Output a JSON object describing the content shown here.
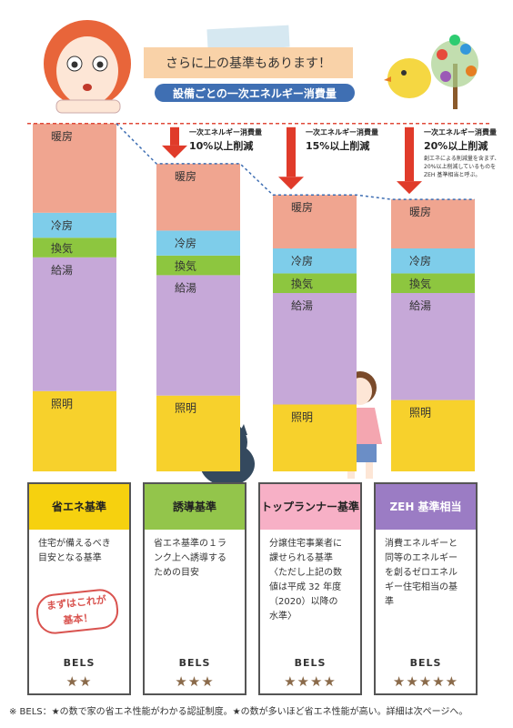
{
  "header": {
    "banner": "さらに上の基準もあります！",
    "subtitle": "設備ごとの一次エネルギー消費量"
  },
  "chart_data": {
    "type": "bar",
    "stacked": true,
    "categories": [
      "省エネ基準",
      "誘導基準",
      "トップランナー基準",
      "ZEH 基準相当"
    ],
    "series": [
      {
        "name": "暖房",
        "color": "#f0a590",
        "values": [
          100,
          75,
          60,
          55
        ]
      },
      {
        "name": "冷房",
        "color": "#7ecdea",
        "values": [
          28,
          28,
          28,
          28
        ]
      },
      {
        "name": "換気",
        "color": "#8dc63f",
        "values": [
          22,
          22,
          22,
          22
        ]
      },
      {
        "name": "給湯",
        "color": "#c6a8d8",
        "values": [
          150,
          135,
          125,
          120
        ]
      },
      {
        "name": "照明",
        "color": "#f7d12c",
        "values": [
          90,
          85,
          75,
          80
        ]
      }
    ],
    "annotations": [
      {
        "small": "一次エネルギー消費量",
        "big": "10%以上削減"
      },
      {
        "small": "一次エネルギー消費量",
        "big": "15%以上削減"
      },
      {
        "small": "一次エネルギー消費量",
        "big": "20%以上削減",
        "note": [
          "創エネによる削減量を含まず、",
          "20%以上削減しているものを",
          "ZEH 基準相当と呼ぶ。"
        ]
      }
    ]
  },
  "cards": [
    {
      "title": "省エネ基準",
      "lines": [
        "住宅が備えるべき",
        "目安となる基準"
      ],
      "stamp": [
        "まずはこれが",
        "基本！"
      ],
      "bels": "BELS",
      "stars": "★★",
      "color": "#f6d10f"
    },
    {
      "title": "誘導基準",
      "lines": [
        "省エネ基準の１ラ",
        "ンク上へ誘導する",
        "ための目安"
      ],
      "bels": "BELS",
      "stars": "★★★",
      "color": "#93c54b"
    },
    {
      "title": "トップランナー基準",
      "lines": [
        "分譲住宅事業者に",
        "課せられる基準",
        "〈ただし上記の数",
        "値は平成 32 年度",
        "（2020）以降の",
        "水準〉"
      ],
      "bels": "BELS",
      "stars": "★★★★",
      "color": "#f7b0c6"
    },
    {
      "title": "ZEH 基準相当",
      "lines": [
        "消費エネルギーと",
        "同等のエネルギー",
        "を創るゼロエネル",
        "ギー住宅相当の基",
        "準"
      ],
      "bels": "BELS",
      "stars": "★★★★★",
      "color": "#9b7cc4"
    }
  ],
  "footnote": "※ BELS：★の数で家の省エネ性能がわかる認証制度。★の数が多いほど省エネ性能が高い。詳細は次ページへ。"
}
